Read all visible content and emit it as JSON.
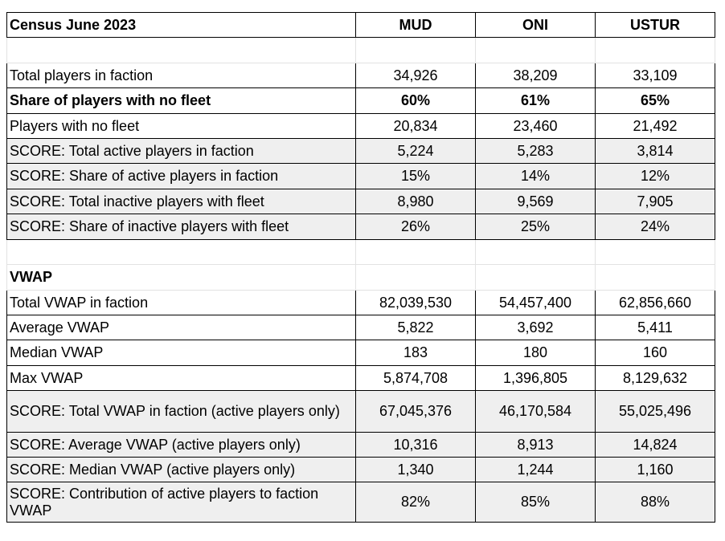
{
  "header": {
    "title": "Census June 2023",
    "columns": [
      "MUD",
      "ONI",
      "USTUR"
    ]
  },
  "players_section": {
    "rows": [
      {
        "label": "Total players in faction",
        "values": [
          "34,926",
          "38,209",
          "33,109"
        ],
        "bold": false,
        "shaded": false
      },
      {
        "label": "Share of players with no fleet",
        "values": [
          "60%",
          "61%",
          "65%"
        ],
        "bold": true,
        "shaded": false
      },
      {
        "label": "Players with no fleet",
        "values": [
          "20,834",
          "23,460",
          "21,492"
        ],
        "bold": false,
        "shaded": false
      },
      {
        "label": "SCORE: Total active players in faction",
        "values": [
          "5,224",
          "5,283",
          "3,814"
        ],
        "bold": false,
        "shaded": true
      },
      {
        "label": "SCORE: Share of active players in faction",
        "values": [
          "15%",
          "14%",
          "12%"
        ],
        "bold": false,
        "shaded": true
      },
      {
        "label": "SCORE: Total inactive players with fleet",
        "values": [
          "8,980",
          "9,569",
          "7,905"
        ],
        "bold": false,
        "shaded": true
      },
      {
        "label": "SCORE: Share of inactive players with fleet",
        "values": [
          "26%",
          "25%",
          "24%"
        ],
        "bold": false,
        "shaded": true
      }
    ]
  },
  "vwap_section": {
    "title": "VWAP",
    "rows": [
      {
        "label": "Total VWAP in faction",
        "values": [
          "82,039,530",
          "54,457,400",
          "62,856,660"
        ],
        "bold": false,
        "shaded": false
      },
      {
        "label": "Average VWAP",
        "values": [
          "5,822",
          "3,692",
          "5,411"
        ],
        "bold": false,
        "shaded": false
      },
      {
        "label": "Median VWAP",
        "values": [
          "183",
          "180",
          "160"
        ],
        "bold": false,
        "shaded": false
      },
      {
        "label": "Max VWAP",
        "values": [
          "5,874,708",
          "1,396,805",
          "8,129,632"
        ],
        "bold": false,
        "shaded": false
      },
      {
        "label": "SCORE: Total VWAP in faction (active players only)",
        "values": [
          "67,045,376",
          "46,170,584",
          "55,025,496"
        ],
        "bold": false,
        "shaded": true
      },
      {
        "label": "SCORE: Average VWAP (active players only)",
        "values": [
          "10,316",
          "8,913",
          "14,824"
        ],
        "bold": false,
        "shaded": true
      },
      {
        "label": "SCORE: Median VWAP (active players only)",
        "values": [
          "1,340",
          "1,244",
          "1,160"
        ],
        "bold": false,
        "shaded": true
      },
      {
        "label": "SCORE: Contribution of active players to faction VWAP",
        "values": [
          "82%",
          "85%",
          "88%"
        ],
        "bold": false,
        "shaded": true
      }
    ]
  }
}
